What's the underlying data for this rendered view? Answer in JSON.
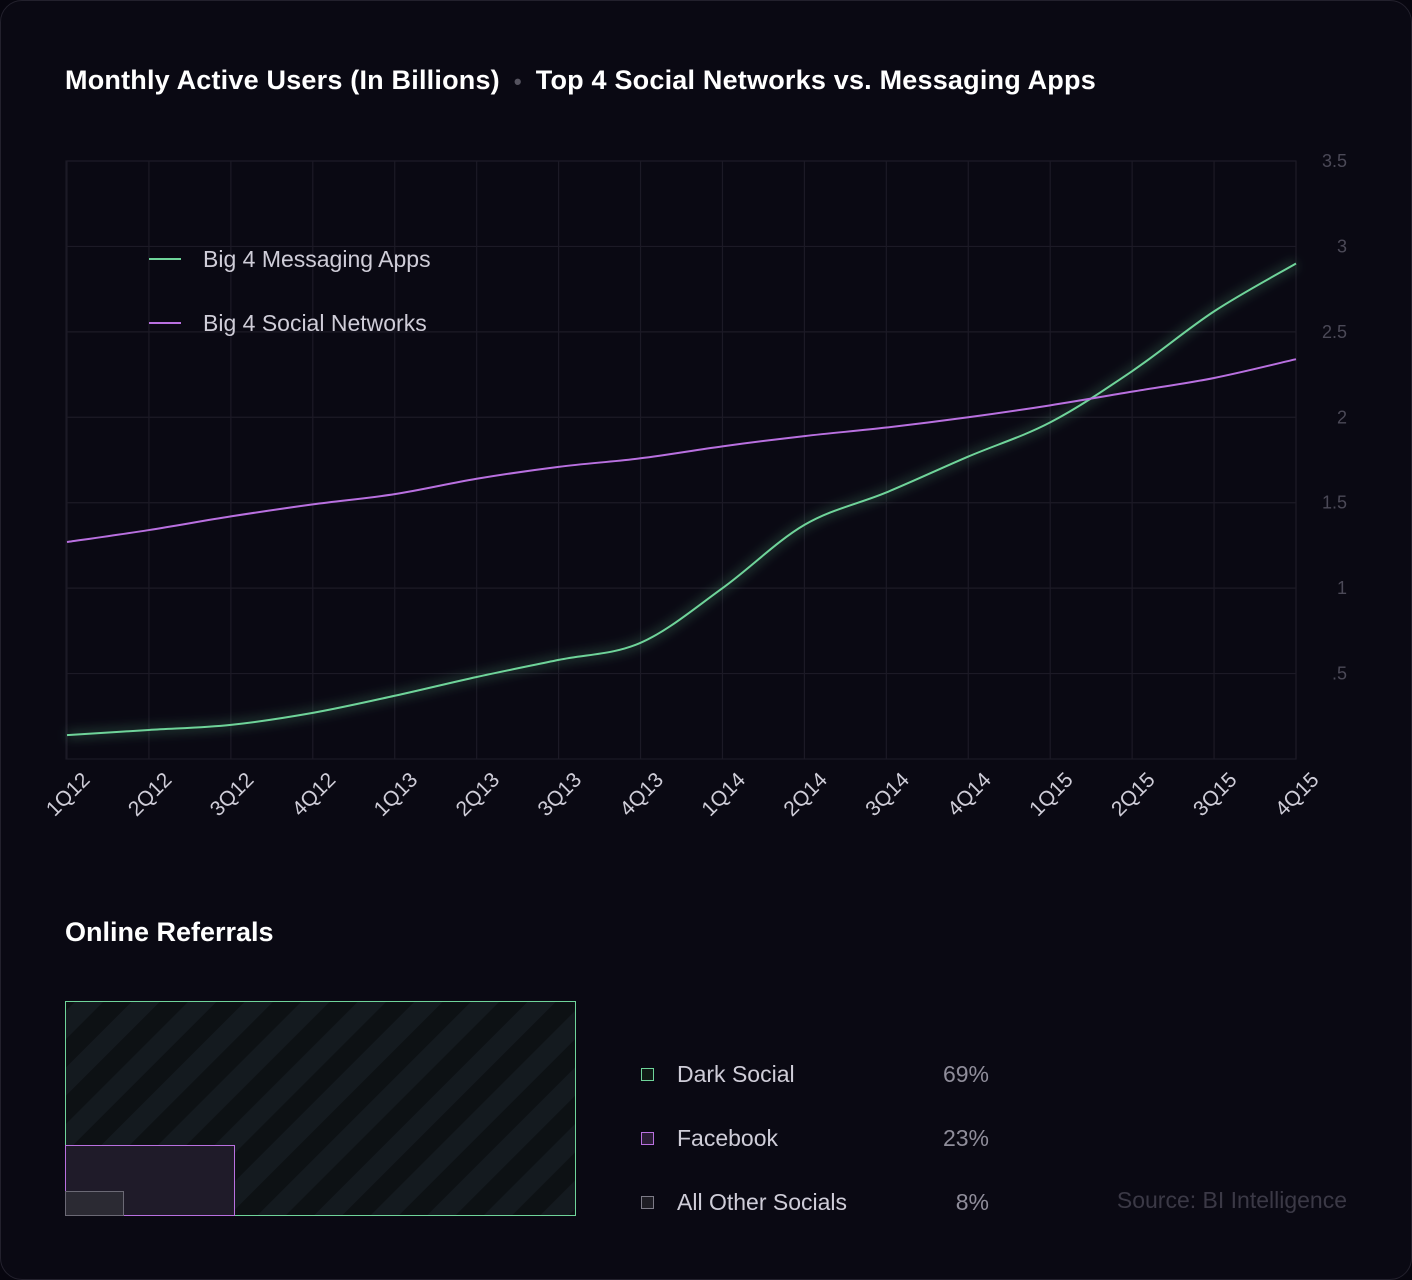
{
  "title": {
    "left": "Monthly Active Users (In Billions)",
    "separator": "•",
    "right": "Top 4 Social Networks vs. Messaging Apps"
  },
  "chart_data": {
    "type": "line",
    "title": "Monthly Active Users (In Billions) • Top 4 Social Networks vs. Messaging Apps",
    "categories": [
      "1Q12",
      "2Q12",
      "3Q12",
      "4Q12",
      "1Q13",
      "2Q13",
      "3Q13",
      "4Q13",
      "1Q14",
      "2Q14",
      "3Q14",
      "4Q14",
      "1Q15",
      "2Q15",
      "3Q15",
      "4Q15"
    ],
    "y_ticks": [
      ".5",
      "1",
      "1.5",
      "2",
      "2.5",
      "3",
      "3.5"
    ],
    "ylim": [
      0,
      3.5
    ],
    "y_axis_side": "right",
    "grid": true,
    "legend_placement": "top-left",
    "series": [
      {
        "name": "Big 4 Messaging Apps",
        "color": "#6fd49a",
        "values": [
          0.14,
          0.17,
          0.2,
          0.27,
          0.37,
          0.48,
          0.58,
          0.68,
          1.0,
          1.37,
          1.56,
          1.77,
          1.97,
          2.27,
          2.62,
          2.9
        ]
      },
      {
        "name": "Big 4 Social Networks",
        "color": "#b970e0",
        "values": [
          1.27,
          1.34,
          1.42,
          1.49,
          1.55,
          1.64,
          1.71,
          1.76,
          1.83,
          1.89,
          1.94,
          2.0,
          2.07,
          2.15,
          2.23,
          2.34
        ]
      }
    ]
  },
  "referrals": {
    "title": "Online Referrals",
    "items": [
      {
        "label": "Dark Social",
        "value": "69%",
        "color": "#6fd49a"
      },
      {
        "label": "Facebook",
        "value": "23%",
        "color": "#b970e0"
      },
      {
        "label": "All Other Socials",
        "value": "8%",
        "color": "#7d7b87"
      }
    ]
  },
  "source": "Source: BI Intelligence"
}
